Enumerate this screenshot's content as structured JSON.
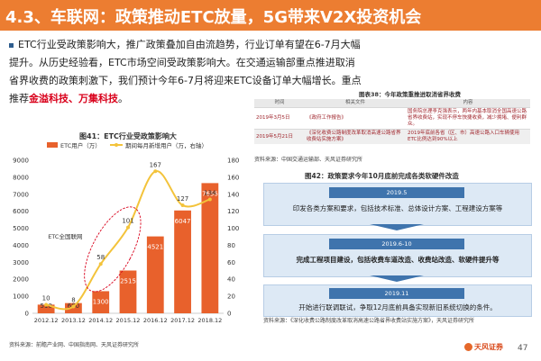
{
  "header": {
    "title": "4.3、车联网：政策推动ETC放量，5G带来V2X投资机会"
  },
  "body": {
    "para_normal": "ETC行业受政策影响大，推广政策叠加自由流趋势，行业订单有望在6-7月大幅提升。从历史经验看，ETC市场空间受政策影响大。在交通运输部重点推进取消省界收费的政策刺激下，我们预计今年6-7月将迎来ETC设备订单大幅增长。重点推荐",
    "para_highlight": "金溢科技、万集科技",
    "para_end": "。"
  },
  "policy_table": {
    "title": "图表38：今年政策重推进取消省界收费",
    "headers": [
      "时间",
      "相关文件",
      "内容"
    ],
    "rows": [
      {
        "date": "2019年3月5日",
        "doc": "《政府工作报告》",
        "content": "国务院总理李克强表示，两年内基本取消全国高速公路省界收费站，实现不停车快捷收费，减少拥堵、便利群众。"
      },
      {
        "date": "2019年5月21日",
        "doc": "《深化收费公路制度改革取消高速公路省界收费站实施方案》",
        "content": "2019年底前各省（区、市）高速公路入口车辆使用ETC比例达到90%以上"
      }
    ],
    "source": "资料来源：中国交通运输部、天风证券研究所"
  },
  "chart": {
    "title": "图41：ETC行业受政策影响大",
    "source": "资料来源：前瞻产业网、中国指南网、天风证券研究所",
    "annotation": "ETC全国联网"
  },
  "chart_data": {
    "type": "bar",
    "categories": [
      "2012.12",
      "2013.12",
      "2014.12",
      "2015.12",
      "2016.12",
      "2017.12",
      "2018.12"
    ],
    "series": [
      {
        "name": "ETC用户（万）",
        "values": [
          510,
          600,
          1300,
          2515,
          4521,
          6047,
          7656
        ],
        "axis": "left"
      },
      {
        "name": "期间每月新增用户（万，右轴）",
        "values": [
          10,
          8,
          58,
          101,
          167,
          127,
          134
        ],
        "axis": "right"
      }
    ],
    "y_left": {
      "min": 0,
      "max": 9000,
      "ticks": [
        0,
        1000,
        2000,
        3000,
        4000,
        5000,
        6000,
        7000,
        8000,
        9000
      ]
    },
    "y_right": {
      "min": 0,
      "max": 180,
      "ticks": [
        0,
        20,
        40,
        60,
        80,
        100,
        120,
        140,
        160,
        180
      ]
    },
    "colors": {
      "bars": "#e8612c",
      "line": "#f3c33b",
      "highlight": "#d9001b"
    }
  },
  "flow": {
    "title": "图42：政策要求今年10月底前完成各类软硬件改造",
    "steps": [
      {
        "date": "2019.5",
        "text": "印发各类方案和要求，包括技术标准、总体设计方案、工程建设方案等"
      },
      {
        "date": "2019.6-10",
        "text": "完成工程项目建设，包括收费车道改造、收费站改造、软硬件提升等"
      },
      {
        "date": "2019.11",
        "text": "开始进行联调联试，争取12月底前具备实现新旧系统切换的条件。"
      }
    ],
    "source": "资料来源：《深化收费公路制度改革取消高速公路省界收费站实施方案》，天风证券研究所"
  },
  "footer": {
    "logo_text": "天风证券",
    "page": "47"
  }
}
